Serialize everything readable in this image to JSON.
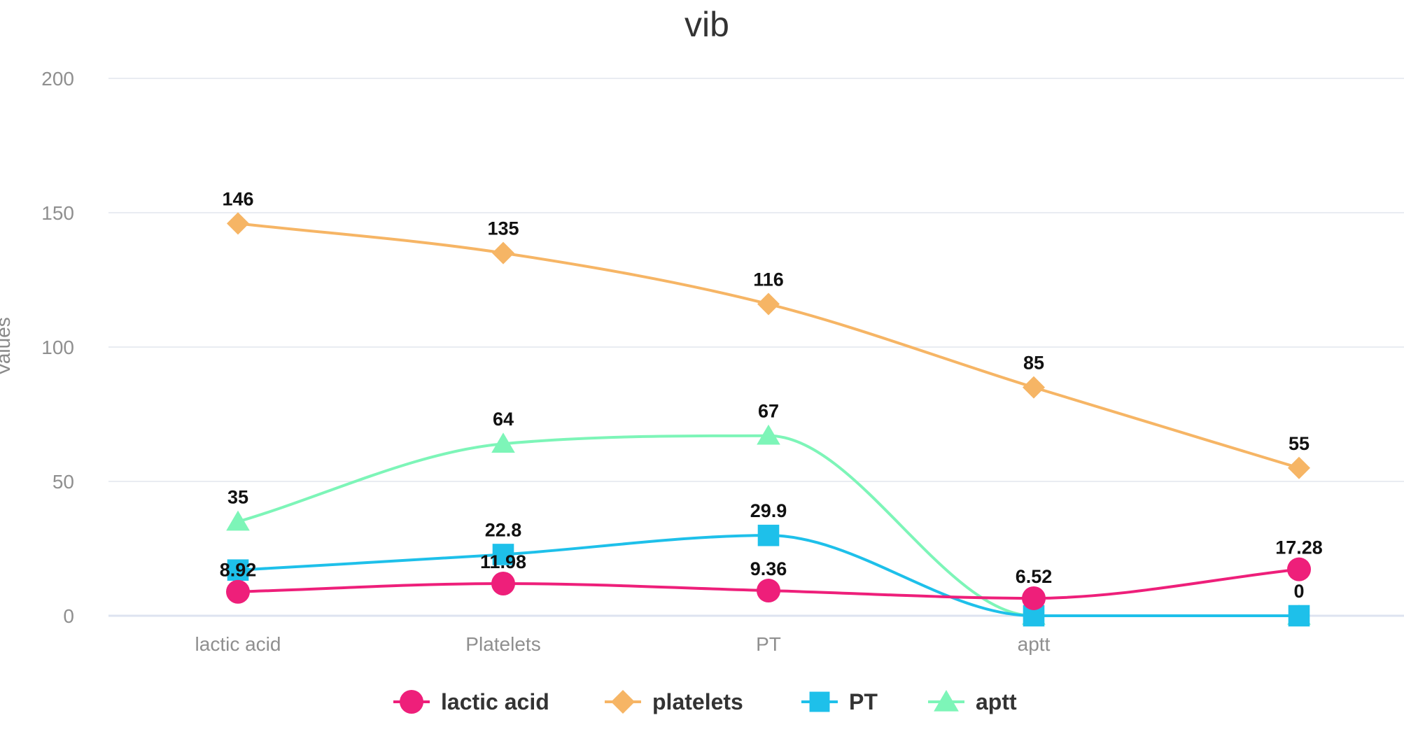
{
  "chart_data": {
    "type": "line",
    "title": "vib",
    "xlabel": "",
    "ylabel": "Values",
    "ylim": [
      0,
      200
    ],
    "yticks": [
      "0",
      "50",
      "100",
      "150",
      "200"
    ],
    "categories": [
      "lactic acid",
      "Platelets",
      "PT",
      "aptt",
      ""
    ],
    "grid": true,
    "legend_position": "bottom",
    "series": [
      {
        "name": "lactic acid",
        "values": [
          8.92,
          11.98,
          9.36,
          6.52,
          17.28
        ],
        "labels": [
          "8.92",
          "11.98",
          "9.36",
          "6.52",
          "17.28"
        ],
        "color": "#ee1f7a",
        "marker": "circle"
      },
      {
        "name": "platelets",
        "values": [
          146,
          135,
          116,
          85,
          55
        ],
        "labels": [
          "146",
          "135",
          "116",
          "85",
          "55"
        ],
        "color": "#f6b565",
        "marker": "diamond"
      },
      {
        "name": "PT",
        "values": [
          17,
          22.8,
          29.9,
          0,
          0
        ],
        "labels": [
          "",
          "22.8",
          "29.9",
          "",
          "0"
        ],
        "color": "#1ec0ea",
        "marker": "square"
      },
      {
        "name": "aptt",
        "values": [
          35,
          64,
          67,
          0,
          0
        ],
        "labels": [
          "35",
          "64",
          "67",
          "",
          ""
        ],
        "color": "#7df5b8",
        "marker": "triangle"
      }
    ]
  }
}
